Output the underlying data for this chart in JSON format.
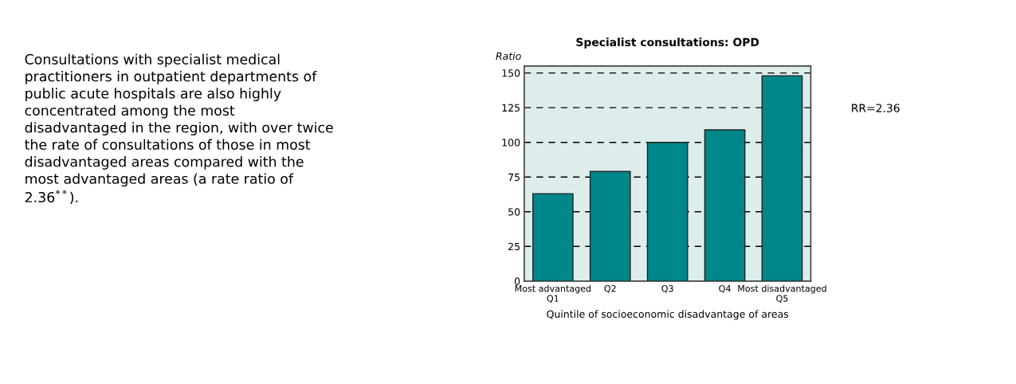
{
  "chart_data": [
    {
      "type": "other",
      "annotations": [
        "Consultations with specialist medical\npractitioners in outpatient departments of\npublic acute hospitals are also highly\nconcentrated among the most\ndisadvantaged in the region, with over twice\nthe rate of consultations of those in most\ndisadvantaged areas compared with the\nmost advantaged areas (a rate ratio of\n2.36$^{**}$)."
      ]
    },
    {
      "type": "bar",
      "title": "Specialist consultations: OPD",
      "ylabel": "Ratio",
      "xlabel": "Quintile of socioeconomic disadvantage of areas",
      "categories": [
        "Most advantaged\nQ1",
        "Q2",
        "Q3",
        "Q4",
        "Most disadvantaged\nQ5"
      ],
      "values": [
        63,
        79,
        100,
        109,
        148
      ],
      "color": "#00878a",
      "ylim": [
        0,
        155
      ],
      "yticks": [
        0,
        25,
        50,
        75,
        100,
        125,
        150
      ],
      "grid": "y",
      "legend": false,
      "annotations": [
        "RR=2.36"
      ]
    }
  ]
}
